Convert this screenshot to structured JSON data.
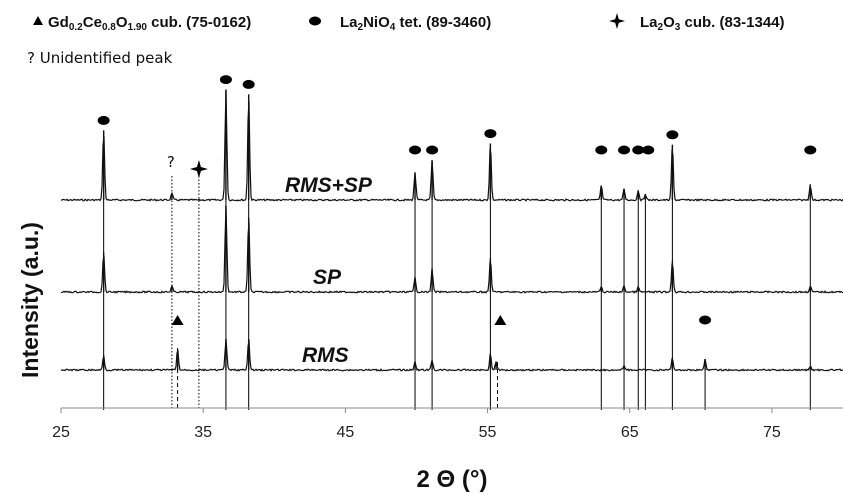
{
  "chart_data": {
    "type": "line",
    "xlabel": "2 Θ (°)",
    "ylabel": "Intensity (a.u.)",
    "xlim": [
      25,
      80
    ],
    "x_ticks": [
      25,
      35,
      45,
      55,
      65,
      75
    ],
    "x_tick_labels": [
      "25",
      "35",
      "45",
      "55",
      "65",
      "75"
    ],
    "note": "? Unidentified peak",
    "legend": [
      {
        "marker": "triangle",
        "phase_main": "Gd",
        "sub1": "0.2",
        "mid1": "Ce",
        "sub2": "0.8",
        "mid2": "O",
        "sub3": "1.90",
        "suffix": " cub. (75-0162)"
      },
      {
        "marker": "ellipse",
        "phase_main": "La",
        "sub1": "2",
        "mid1": "NiO",
        "sub2": "4",
        "suffix": " tet. (89-3460)"
      },
      {
        "marker": "star",
        "phase_main": "La",
        "sub1": "2",
        "mid1": "O",
        "sub2": "3",
        "suffix": " cub. (83-1344)"
      }
    ],
    "series": [
      {
        "name": "RMS+SP",
        "peaks": [
          {
            "x": 28.0,
            "h": 0.58
          },
          {
            "x": 32.8,
            "h": 0.06
          },
          {
            "x": 36.6,
            "h": 0.92
          },
          {
            "x": 38.2,
            "h": 0.88
          },
          {
            "x": 49.9,
            "h": 0.23
          },
          {
            "x": 51.1,
            "h": 0.33
          },
          {
            "x": 55.2,
            "h": 0.47
          },
          {
            "x": 63.0,
            "h": 0.12
          },
          {
            "x": 64.6,
            "h": 0.09
          },
          {
            "x": 65.6,
            "h": 0.08
          },
          {
            "x": 66.1,
            "h": 0.05
          },
          {
            "x": 68.0,
            "h": 0.46
          },
          {
            "x": 77.7,
            "h": 0.13
          }
        ]
      },
      {
        "name": "SP",
        "peaks": [
          {
            "x": 28.0,
            "h": 0.33
          },
          {
            "x": 32.8,
            "h": 0.05
          },
          {
            "x": 36.6,
            "h": 0.72
          },
          {
            "x": 38.2,
            "h": 0.62
          },
          {
            "x": 49.9,
            "h": 0.12
          },
          {
            "x": 51.1,
            "h": 0.19
          },
          {
            "x": 55.2,
            "h": 0.28
          },
          {
            "x": 63.0,
            "h": 0.04
          },
          {
            "x": 64.6,
            "h": 0.05
          },
          {
            "x": 65.6,
            "h": 0.04
          },
          {
            "x": 68.0,
            "h": 0.26
          },
          {
            "x": 77.7,
            "h": 0.05
          }
        ]
      },
      {
        "name": "RMS",
        "peaks": [
          {
            "x": 28.0,
            "h": 0.12
          },
          {
            "x": 33.2,
            "h": 0.17
          },
          {
            "x": 36.6,
            "h": 0.26
          },
          {
            "x": 38.2,
            "h": 0.26
          },
          {
            "x": 49.9,
            "h": 0.07
          },
          {
            "x": 51.1,
            "h": 0.08
          },
          {
            "x": 55.2,
            "h": 0.13
          },
          {
            "x": 55.6,
            "h": 0.07
          },
          {
            "x": 64.6,
            "h": 0.04
          },
          {
            "x": 68.0,
            "h": 0.1
          },
          {
            "x": 70.3,
            "h": 0.09
          },
          {
            "x": 77.7,
            "h": 0.03
          }
        ]
      }
    ],
    "reference_lines": [
      {
        "x": 28.0,
        "style": "solid",
        "phase": "La2NiO4"
      },
      {
        "x": 32.8,
        "style": "dotted",
        "phase": "unidentified"
      },
      {
        "x": 33.2,
        "style": "dashed",
        "phase": "Gd0.2Ce0.8O1.90"
      },
      {
        "x": 34.7,
        "style": "dotted",
        "phase": "La2O3"
      },
      {
        "x": 36.6,
        "style": "solid",
        "phase": "La2NiO4"
      },
      {
        "x": 38.2,
        "style": "solid",
        "phase": "La2NiO4"
      },
      {
        "x": 49.9,
        "style": "solid",
        "phase": "La2NiO4"
      },
      {
        "x": 51.1,
        "style": "solid",
        "phase": "La2NiO4"
      },
      {
        "x": 55.2,
        "style": "solid",
        "phase": "La2NiO4"
      },
      {
        "x": 55.7,
        "style": "dashed",
        "phase": "Gd0.2Ce0.8O1.90"
      },
      {
        "x": 63.0,
        "style": "solid",
        "phase": "La2NiO4"
      },
      {
        "x": 64.6,
        "style": "solid",
        "phase": "La2NiO4"
      },
      {
        "x": 65.6,
        "style": "solid",
        "phase": "La2NiO4"
      },
      {
        "x": 66.1,
        "style": "solid",
        "phase": "La2NiO4"
      },
      {
        "x": 68.0,
        "style": "solid",
        "phase": "La2NiO4"
      },
      {
        "x": 70.3,
        "style": "solid",
        "phase": "La2NiO4"
      },
      {
        "x": 77.7,
        "style": "solid",
        "phase": "La2NiO4"
      }
    ],
    "markers": [
      {
        "type": "ellipse",
        "x": 28.0,
        "series": "RMS+SP"
      },
      {
        "type": "question",
        "x": 32.8,
        "series": "RMS+SP",
        "text": "?"
      },
      {
        "type": "star",
        "x": 34.7,
        "series": "RMS+SP"
      },
      {
        "type": "ellipse",
        "x": 36.6,
        "series": "RMS+SP"
      },
      {
        "type": "ellipse",
        "x": 38.2,
        "series": "RMS+SP"
      },
      {
        "type": "ellipse",
        "x": 49.9,
        "series": "RMS+SP"
      },
      {
        "type": "ellipse",
        "x": 51.1,
        "series": "RMS+SP"
      },
      {
        "type": "ellipse",
        "x": 55.2,
        "series": "RMS+SP"
      },
      {
        "type": "ellipse",
        "x": 63.0,
        "series": "RMS+SP"
      },
      {
        "type": "ellipse",
        "x": 64.6,
        "series": "RMS+SP"
      },
      {
        "type": "ellipse",
        "x": 65.6,
        "series": "RMS+SP"
      },
      {
        "type": "ellipse",
        "x": 66.3,
        "series": "RMS+SP"
      },
      {
        "type": "ellipse",
        "x": 68.0,
        "series": "RMS+SP"
      },
      {
        "type": "ellipse",
        "x": 77.7,
        "series": "RMS+SP"
      },
      {
        "type": "triangle",
        "x": 33.2,
        "series": "RMS"
      },
      {
        "type": "triangle",
        "x": 55.9,
        "series": "RMS"
      },
      {
        "type": "ellipse",
        "x": 70.3,
        "series": "RMS"
      }
    ],
    "grid": false,
    "legend_position": "top"
  }
}
